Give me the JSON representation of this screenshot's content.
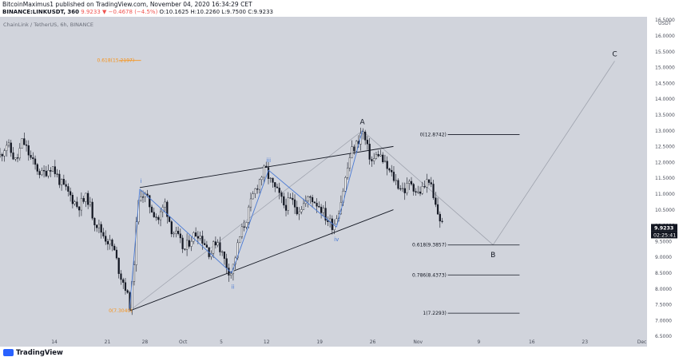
{
  "header": {
    "line1": "BitcoinMaximus1 published on TradingView.com, November 04, 2020 16:34:29 CET",
    "pair": "BINANCE:LINKUSDT, 360",
    "change": "9.9233 ▼ −0.4678 (−4.5%)",
    "ohlc": "O:10.1625 H:10.2260 L:9.7500 C:9.9233"
  },
  "chart_title": "ChainLink / TetherUS, 6h, BINANCE",
  "footer": {
    "logo": "TradingView"
  },
  "colors": {
    "background": "#d1d4dc",
    "price_axis_bg": "#ffffff",
    "candle": "#131722",
    "wave_blue": "#4a7ad4",
    "fib_orange": "#f7931a",
    "projection_gray": "#9ea2ad",
    "price_label_bg": "#131722"
  },
  "chart_data": {
    "type": "candlestick",
    "y_unit": "USDT",
    "ylim": [
      6.5,
      16.6
    ],
    "y_ticks": [
      "16.5000",
      "16.0000",
      "15.5000",
      "15.0000",
      "14.5000",
      "14.0000",
      "13.5000",
      "13.0000",
      "12.5000",
      "12.0000",
      "11.5000",
      "11.0000",
      "10.5000",
      "10.0000",
      "9.5000",
      "9.0000",
      "8.5000",
      "8.0000",
      "7.5000",
      "7.0000",
      "6.5000"
    ],
    "x_ticks": [
      "14",
      "21",
      "28",
      "Oct",
      "5",
      "12",
      "19",
      "26",
      "Nov",
      "9",
      "16",
      "23",
      "Dec"
    ],
    "last_price": "9.9233",
    "countdown": "02:25:41",
    "price_path": [
      {
        "t": 0.0,
        "p": 12.2
      },
      {
        "t": 1.0,
        "p": 12.6
      },
      {
        "t": 2.5,
        "p": 12.0
      },
      {
        "t": 3.5,
        "p": 12.7
      },
      {
        "t": 5.0,
        "p": 12.0
      },
      {
        "t": 6.5,
        "p": 11.6
      },
      {
        "t": 8.0,
        "p": 11.9
      },
      {
        "t": 9.5,
        "p": 11.3
      },
      {
        "t": 11.0,
        "p": 10.9
      },
      {
        "t": 12.0,
        "p": 10.6
      },
      {
        "t": 13.5,
        "p": 10.9
      },
      {
        "t": 14.5,
        "p": 10.2
      },
      {
        "t": 16.0,
        "p": 9.7
      },
      {
        "t": 17.5,
        "p": 9.3
      },
      {
        "t": 18.5,
        "p": 8.5
      },
      {
        "t": 19.5,
        "p": 8.0
      },
      {
        "t": 20.0,
        "p": 7.4
      },
      {
        "t": 20.6,
        "p": 8.4
      },
      {
        "t": 21.0,
        "p": 9.8
      },
      {
        "t": 21.6,
        "p": 11.1
      },
      {
        "t": 22.5,
        "p": 10.9
      },
      {
        "t": 23.5,
        "p": 10.5
      },
      {
        "t": 24.5,
        "p": 10.2
      },
      {
        "t": 25.5,
        "p": 10.7
      },
      {
        "t": 26.5,
        "p": 9.9
      },
      {
        "t": 27.5,
        "p": 9.6
      },
      {
        "t": 28.5,
        "p": 9.2
      },
      {
        "t": 29.5,
        "p": 9.6
      },
      {
        "t": 30.5,
        "p": 9.8
      },
      {
        "t": 31.5,
        "p": 9.5
      },
      {
        "t": 32.5,
        "p": 9.1
      },
      {
        "t": 33.5,
        "p": 9.6
      },
      {
        "t": 34.5,
        "p": 9.0
      },
      {
        "t": 35.3,
        "p": 8.6
      },
      {
        "t": 35.8,
        "p": 8.5
      },
      {
        "t": 37.0,
        "p": 9.6
      },
      {
        "t": 38.2,
        "p": 10.3
      },
      {
        "t": 39.2,
        "p": 11.0
      },
      {
        "t": 40.0,
        "p": 11.4
      },
      {
        "t": 41.0,
        "p": 11.8
      },
      {
        "t": 42.0,
        "p": 11.3
      },
      {
        "t": 43.0,
        "p": 11.0
      },
      {
        "t": 44.0,
        "p": 10.6
      },
      {
        "t": 45.0,
        "p": 10.8
      },
      {
        "t": 46.0,
        "p": 10.5
      },
      {
        "t": 47.0,
        "p": 10.7
      },
      {
        "t": 48.0,
        "p": 10.9
      },
      {
        "t": 49.5,
        "p": 10.6
      },
      {
        "t": 50.5,
        "p": 10.2
      },
      {
        "t": 51.5,
        "p": 10.0
      },
      {
        "t": 52.5,
        "p": 10.6
      },
      {
        "t": 53.5,
        "p": 11.6
      },
      {
        "t": 54.2,
        "p": 12.3
      },
      {
        "t": 55.2,
        "p": 12.6
      },
      {
        "t": 56.0,
        "p": 13.0
      },
      {
        "t": 56.8,
        "p": 12.4
      },
      {
        "t": 57.5,
        "p": 12.0
      },
      {
        "t": 58.5,
        "p": 12.3
      },
      {
        "t": 59.5,
        "p": 11.9
      },
      {
        "t": 60.5,
        "p": 11.6
      },
      {
        "t": 61.5,
        "p": 11.3
      },
      {
        "t": 62.5,
        "p": 11.1
      },
      {
        "t": 63.5,
        "p": 11.4
      },
      {
        "t": 64.5,
        "p": 11.0
      },
      {
        "t": 65.5,
        "p": 11.2
      },
      {
        "t": 66.3,
        "p": 11.5
      },
      {
        "t": 67.0,
        "p": 10.8
      },
      {
        "t": 67.8,
        "p": 10.3
      },
      {
        "t": 68.6,
        "p": 9.92
      }
    ],
    "channel_lines": [
      {
        "from": {
          "t": 21.6,
          "p": 11.2
        },
        "to": {
          "t": 60.8,
          "p": 12.5
        }
      },
      {
        "from": {
          "t": 20.0,
          "p": 7.3
        },
        "to": {
          "t": 60.8,
          "p": 10.5
        }
      }
    ],
    "wave_path": [
      {
        "t": 20.0,
        "p": 7.3
      },
      {
        "t": 21.6,
        "p": 11.15
      },
      {
        "t": 35.8,
        "p": 8.5
      },
      {
        "t": 41.5,
        "p": 11.75
      },
      {
        "t": 52.0,
        "p": 9.95
      },
      {
        "t": 56.0,
        "p": 13.0
      }
    ],
    "wave_labels": [
      {
        "text": "i",
        "t": 21.8,
        "p": 11.4
      },
      {
        "text": "ii",
        "t": 36.0,
        "p": 8.05
      },
      {
        "text": "iii",
        "t": 41.5,
        "p": 12.05
      },
      {
        "text": "iv",
        "t": 52.0,
        "p": 9.55
      }
    ],
    "point_labels": [
      {
        "text": "A",
        "t": 56.0,
        "p": 13.25
      },
      {
        "text": "B",
        "t": 76.2,
        "p": 9.05
      },
      {
        "text": "C",
        "t": 95.0,
        "p": 15.4
      }
    ],
    "projection_path": [
      {
        "t": 56.0,
        "p": 13.0
      },
      {
        "t": 76.2,
        "p": 9.39
      },
      {
        "t": 95.0,
        "p": 15.2
      }
    ],
    "gray_guide": {
      "from": {
        "t": 20.0,
        "p": 7.3
      },
      "to": {
        "t": 56.0,
        "p": 13.0
      }
    },
    "fib_levels": [
      {
        "label": "0(12.8742)",
        "value": 12.8742
      },
      {
        "label": "0.618(9.3857)",
        "value": 9.3857
      },
      {
        "label": "0.786(8.4373)",
        "value": 8.4373
      },
      {
        "label": "1(7.2293)",
        "value": 7.2293
      }
    ],
    "orange_fib": [
      {
        "label": "0.618(15.2197)",
        "value": 15.2197
      },
      {
        "label": "0(7.3040)",
        "value": 7.304
      }
    ]
  }
}
